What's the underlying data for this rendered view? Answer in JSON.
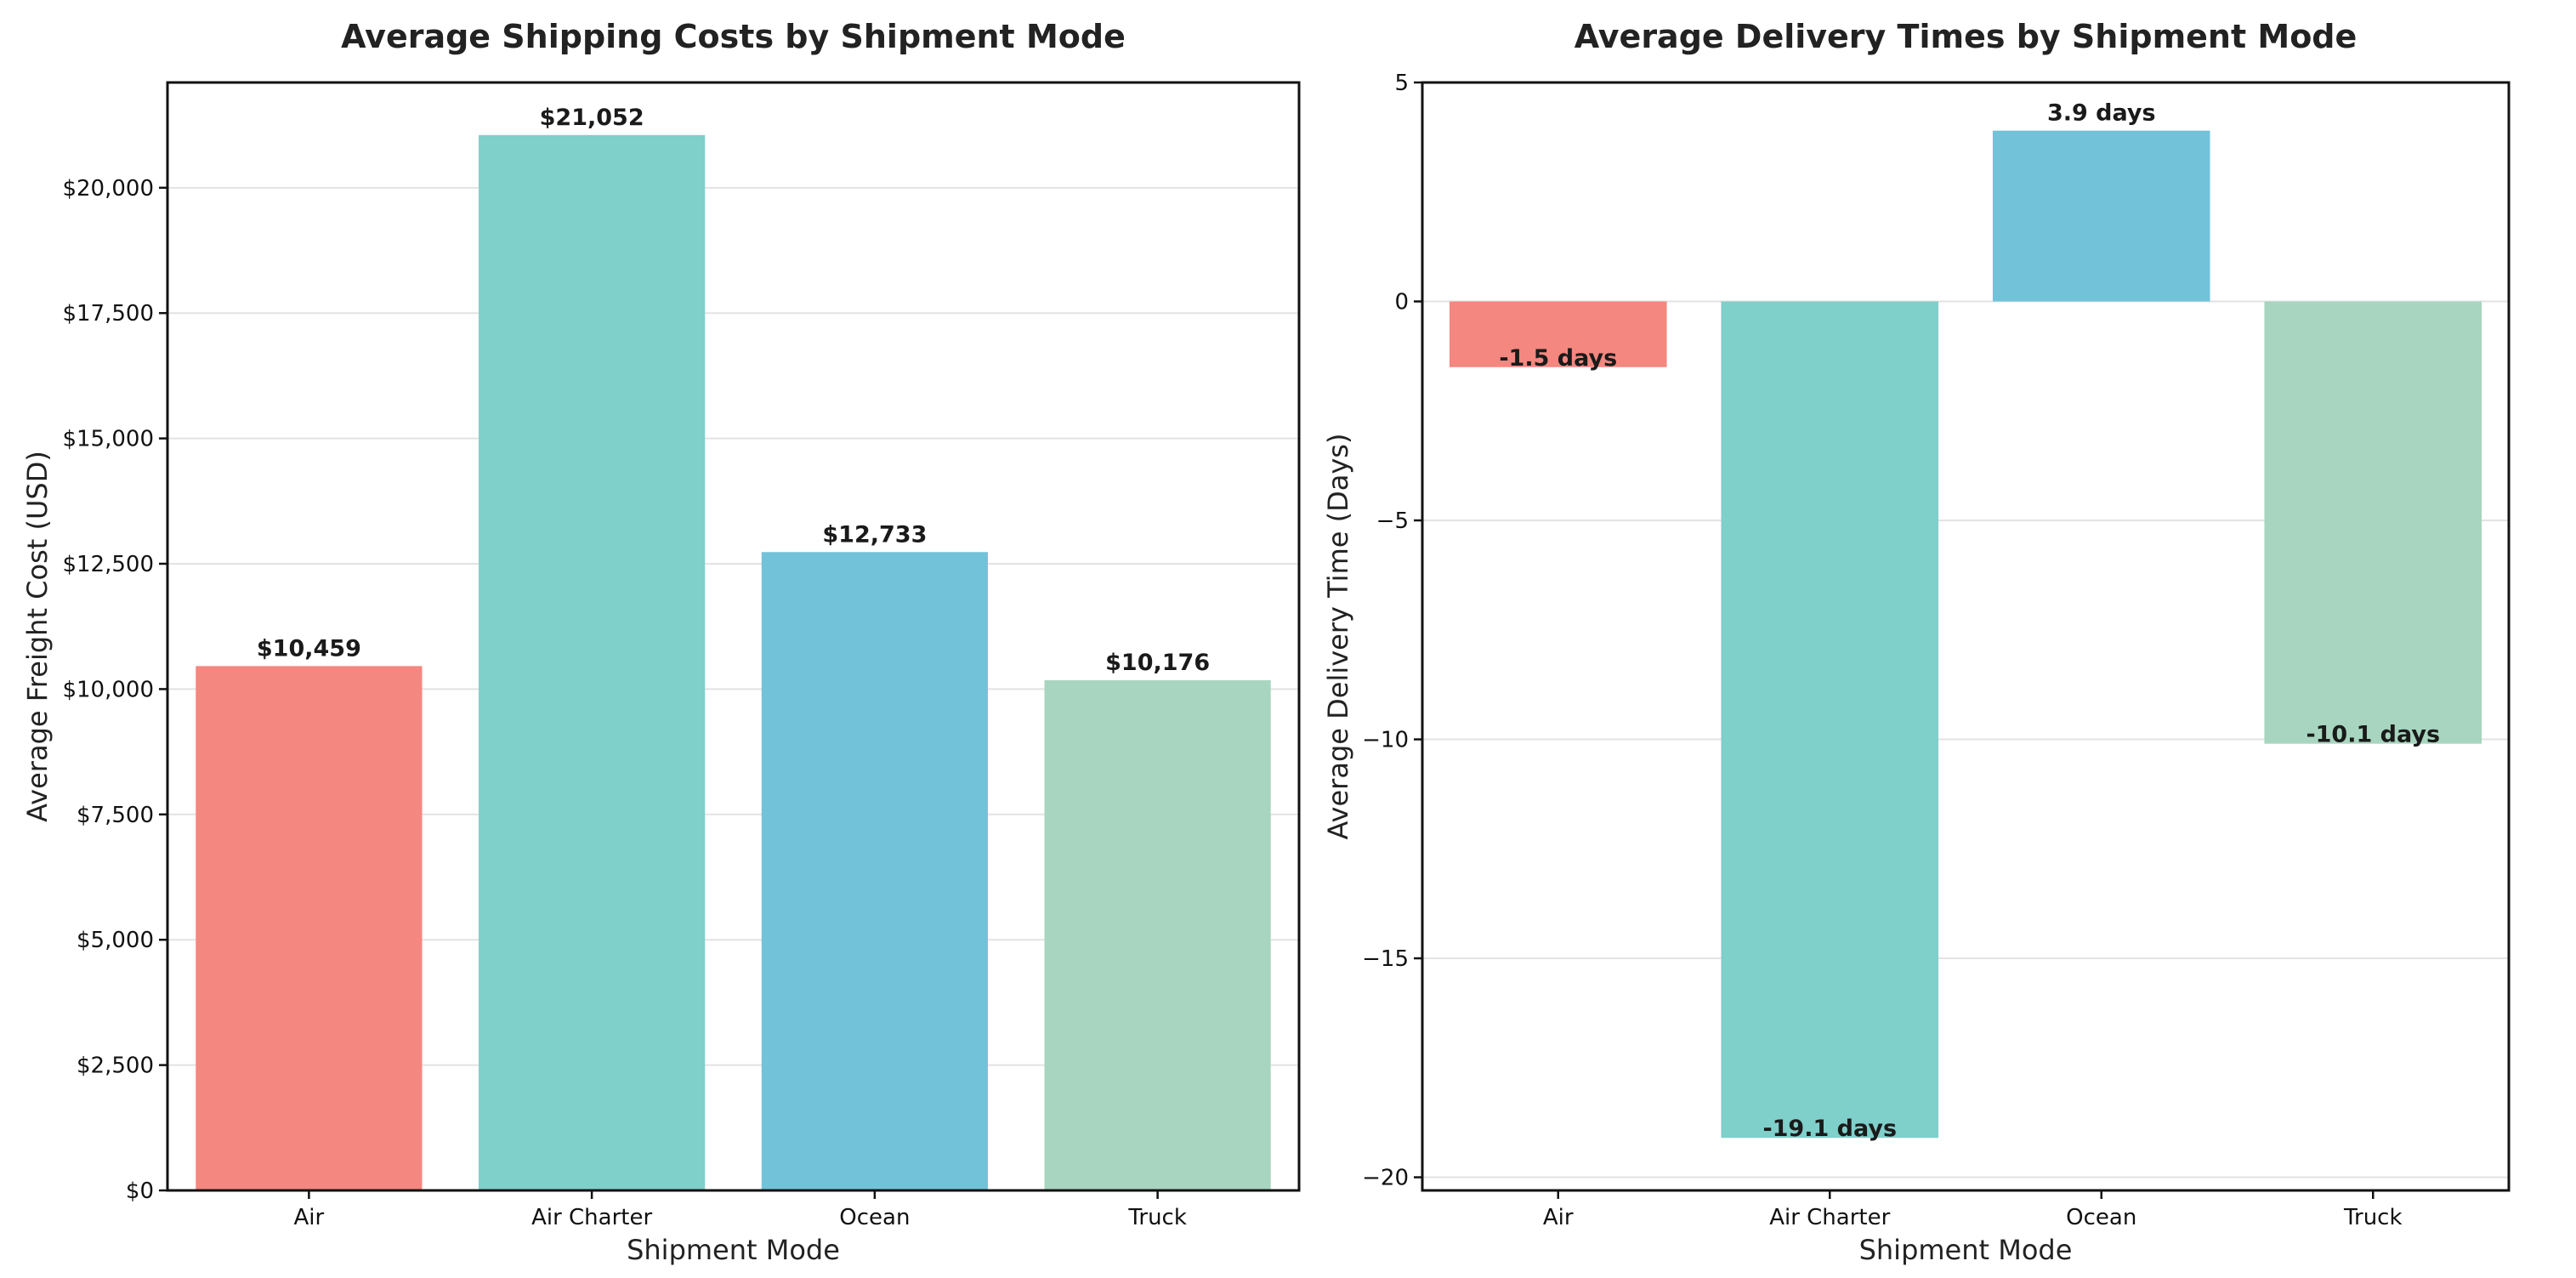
{
  "chart_data": [
    {
      "type": "bar",
      "title": "Average Shipping Costs by Shipment Mode",
      "xlabel": "Shipment Mode",
      "ylabel": "Average Freight Cost (USD)",
      "categories": [
        "Air",
        "Air Charter",
        "Ocean",
        "Truck"
      ],
      "values": [
        10459,
        21052,
        12733,
        10176
      ],
      "data_labels": [
        "$10,459",
        "$21,052",
        "$12,733",
        "$10,176"
      ],
      "colors": [
        "#f4877f",
        "#7fcfca",
        "#72c2d9",
        "#a8d5bf"
      ],
      "ylim": [
        0,
        22100
      ],
      "yticks": [
        0,
        2500,
        5000,
        7500,
        10000,
        12500,
        15000,
        17500,
        20000
      ],
      "ytick_labels": [
        "$0",
        "$2,500",
        "$5,000",
        "$7,500",
        "$10,000",
        "$12,500",
        "$15,000",
        "$17,500",
        "$20,000"
      ],
      "grid": "y"
    },
    {
      "type": "bar",
      "title": "Average Delivery Times by Shipment Mode",
      "xlabel": "Shipment Mode",
      "ylabel": "Average Delivery Time (Days)",
      "categories": [
        "Air",
        "Air Charter",
        "Ocean",
        "Truck"
      ],
      "values": [
        -1.5,
        -19.1,
        3.9,
        -10.1
      ],
      "data_labels": [
        "-1.5 days",
        "-19.1 days",
        "3.9 days",
        "-10.1 days"
      ],
      "colors": [
        "#f4877f",
        "#7fcfca",
        "#72c2d9",
        "#a8d5bf"
      ],
      "ylim": [
        -20.3,
        5
      ],
      "yticks": [
        -20,
        -15,
        -10,
        -5,
        0,
        5
      ],
      "ytick_labels": [
        "−20",
        "−15",
        "−10",
        "−5",
        "0",
        "5"
      ],
      "grid": "y"
    }
  ]
}
